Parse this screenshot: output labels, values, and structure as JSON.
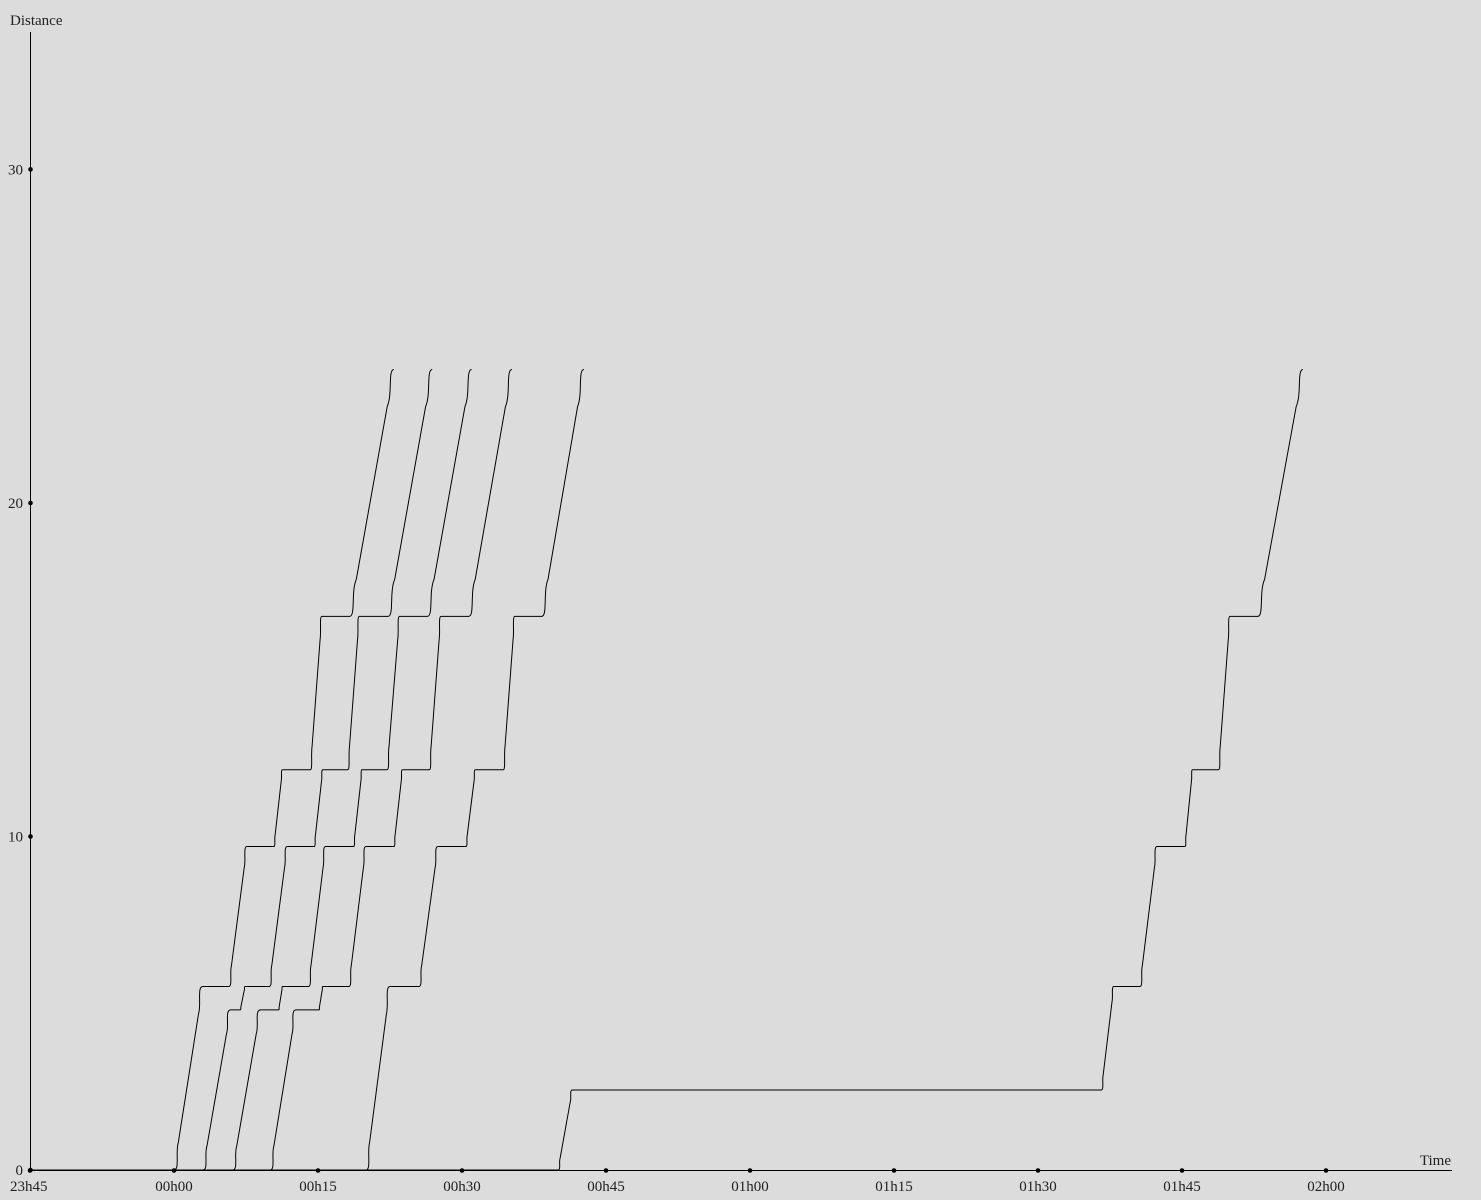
{
  "chart_data": {
    "type": "line",
    "xlabel": "Time",
    "ylabel": "Distance",
    "x_unit": "minutes",
    "xlim": [
      -15,
      135
    ],
    "ylim": [
      0,
      34
    ],
    "x_ticks": [
      {
        "value": -15,
        "label": "23h45"
      },
      {
        "value": 0,
        "label": "00h00"
      },
      {
        "value": 15,
        "label": "00h15"
      },
      {
        "value": 30,
        "label": "00h30"
      },
      {
        "value": 45,
        "label": "00h45"
      },
      {
        "value": 60,
        "label": "01h00"
      },
      {
        "value": 75,
        "label": "01h15"
      },
      {
        "value": 90,
        "label": "01h30"
      },
      {
        "value": 105,
        "label": "01h45"
      },
      {
        "value": 120,
        "label": "02h00"
      }
    ],
    "y_ticks": [
      {
        "value": 0,
        "label": "0"
      },
      {
        "value": 10,
        "label": "10"
      },
      {
        "value": 20,
        "label": "20"
      },
      {
        "value": 30,
        "label": "30"
      }
    ],
    "series": [
      {
        "values": [
          [
            0.0,
            0.0
          ],
          [
            3.0,
            5.5
          ],
          [
            5.7,
            5.5
          ],
          [
            7.6,
            9.7
          ],
          [
            10.4,
            9.7
          ],
          [
            11.3,
            12.0
          ],
          [
            14.2,
            12.0
          ],
          [
            15.4,
            16.6
          ],
          [
            18.3,
            16.6
          ],
          [
            22.9,
            24.0
          ]
        ]
      },
      {
        "values": [
          [
            3.0,
            0.0
          ],
          [
            5.9,
            4.8
          ],
          [
            6.9,
            4.8
          ],
          [
            7.4,
            5.5
          ],
          [
            9.9,
            5.5
          ],
          [
            11.8,
            9.7
          ],
          [
            14.6,
            9.7
          ],
          [
            15.5,
            12.0
          ],
          [
            18.1,
            12.0
          ],
          [
            19.3,
            16.6
          ],
          [
            22.3,
            16.6
          ],
          [
            26.9,
            24.0
          ]
        ]
      },
      {
        "values": [
          [
            6.1,
            0.0
          ],
          [
            9.0,
            4.8
          ],
          [
            10.9,
            4.8
          ],
          [
            11.3,
            5.5
          ],
          [
            14.0,
            5.5
          ],
          [
            15.8,
            9.7
          ],
          [
            18.7,
            9.7
          ],
          [
            19.6,
            12.0
          ],
          [
            22.2,
            12.0
          ],
          [
            23.5,
            16.6
          ],
          [
            26.4,
            16.6
          ],
          [
            31.0,
            24.0
          ]
        ]
      },
      {
        "values": [
          [
            10.0,
            0.0
          ],
          [
            12.7,
            4.8
          ],
          [
            15.1,
            4.8
          ],
          [
            15.5,
            5.5
          ],
          [
            18.2,
            5.5
          ],
          [
            20.0,
            9.7
          ],
          [
            22.9,
            9.7
          ],
          [
            23.8,
            12.0
          ],
          [
            26.6,
            12.0
          ],
          [
            27.8,
            16.6
          ],
          [
            30.7,
            16.6
          ],
          [
            35.2,
            24.0
          ]
        ]
      },
      {
        "values": [
          [
            20.0,
            0.0
          ],
          [
            22.5,
            5.5
          ],
          [
            25.5,
            5.5
          ],
          [
            27.5,
            9.7
          ],
          [
            30.4,
            9.7
          ],
          [
            31.4,
            12.0
          ],
          [
            34.3,
            12.0
          ],
          [
            35.5,
            16.6
          ],
          [
            38.3,
            16.6
          ],
          [
            42.7,
            24.0
          ]
        ]
      },
      {
        "values": [
          [
            40.0,
            0.0
          ],
          [
            41.5,
            2.4
          ],
          [
            96.6,
            2.4
          ],
          [
            97.9,
            5.5
          ],
          [
            100.6,
            5.5
          ],
          [
            102.4,
            9.7
          ],
          [
            105.3,
            9.7
          ],
          [
            106.1,
            12.0
          ],
          [
            108.8,
            12.0
          ],
          [
            110.0,
            16.6
          ],
          [
            112.9,
            16.6
          ],
          [
            117.6,
            24.0
          ]
        ]
      }
    ]
  }
}
